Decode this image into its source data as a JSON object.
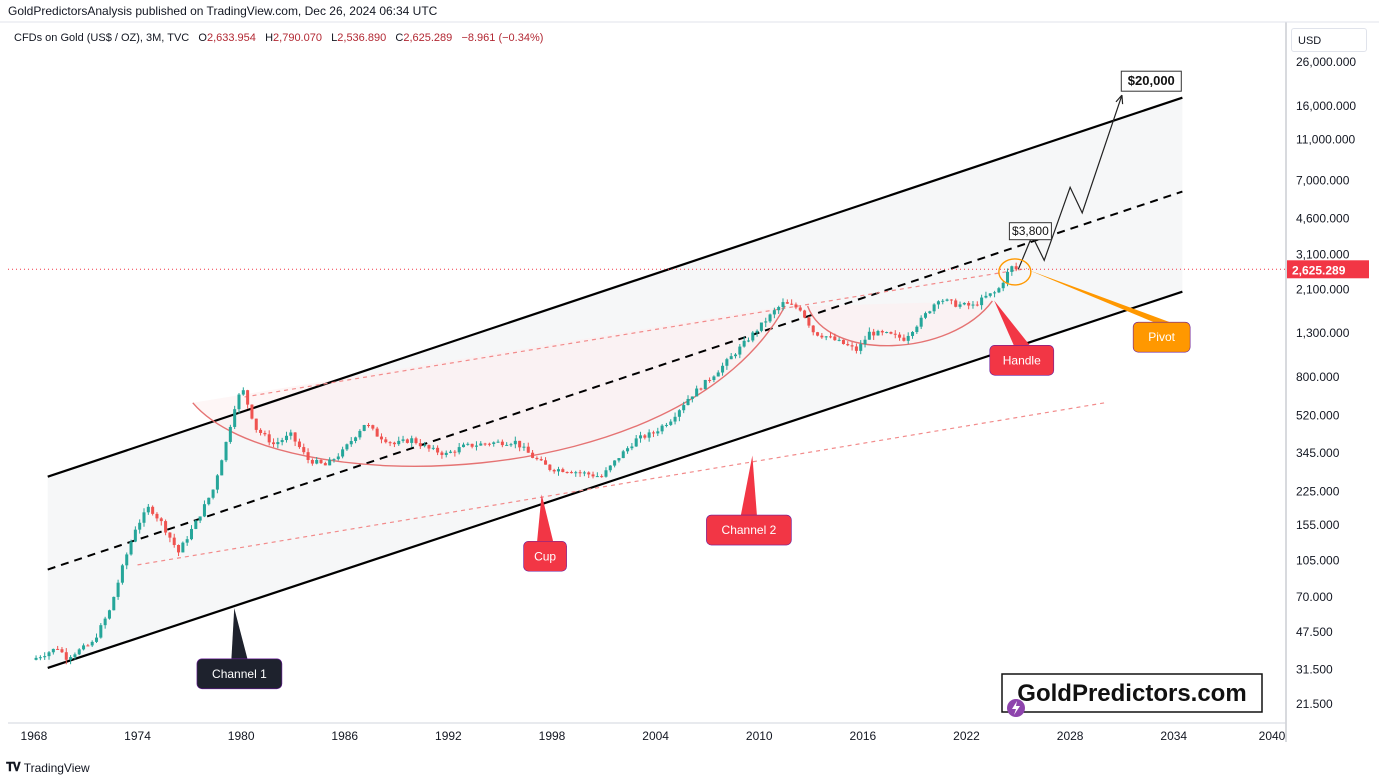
{
  "header": {
    "published": "GoldPredictorsAnalysis published on TradingView.com, Dec 26, 2024 06:34 UTC",
    "symbol": "CFDs on Gold (US$ / OZ), 3M, TVC",
    "o_label": "O",
    "o_value": "2,633.954",
    "h_label": "H",
    "h_value": "2,790.070",
    "l_label": "L",
    "l_value": "2,536.890",
    "c_label": "C",
    "c_value": "2,625.289",
    "change": "−8.961 (−0.34%)"
  },
  "currency": "USD",
  "footer": {
    "brand": "TradingView"
  },
  "watermark": "GoldPredictors.com",
  "colors": {
    "up": "#26a69a",
    "down": "#ef5350",
    "label_red": "#f23645",
    "label_dark": "#1e222d",
    "label_orange": "#ff9800",
    "price_tag": "#f23645"
  },
  "chart_data": {
    "type": "candlestick",
    "scale": "log",
    "x_ticks": [
      "1968",
      "1974",
      "1980",
      "1986",
      "1992",
      "1998",
      "2004",
      "2010",
      "2016",
      "2022",
      "2028",
      "2034",
      "2040"
    ],
    "y_ticks": [
      "26,000.000",
      "16,000.000",
      "11,000.000",
      "7,000.000",
      "4,600.000",
      "3,100.000",
      "2,100.000",
      "1,300.000",
      "800.000",
      "520.000",
      "345.000",
      "225.000",
      "155.000",
      "105.000",
      "70.000",
      "47.500",
      "31.500",
      "21.500"
    ],
    "y_tick_values": [
      26000,
      16000,
      11000,
      7000,
      4600,
      3100,
      2100,
      1300,
      800,
      520,
      345,
      225,
      155,
      105,
      70,
      47.5,
      31.5,
      21.5
    ],
    "last_price_label": "2,625.289",
    "last_price": 2625.289,
    "price_path": [
      [
        1968.0,
        35
      ],
      [
        1969.5,
        40
      ],
      [
        1970.0,
        36
      ],
      [
        1971.5,
        42
      ],
      [
        1972.5,
        60
      ],
      [
        1973.3,
        100
      ],
      [
        1974.0,
        150
      ],
      [
        1974.8,
        190
      ],
      [
        1975.5,
        160
      ],
      [
        1976.5,
        115
      ],
      [
        1977.5,
        160
      ],
      [
        1978.5,
        230
      ],
      [
        1979.3,
        400
      ],
      [
        1979.8,
        600
      ],
      [
        1980.2,
        700
      ],
      [
        1981.0,
        450
      ],
      [
        1982.0,
        380
      ],
      [
        1983.0,
        420
      ],
      [
        1984.0,
        320
      ],
      [
        1985.0,
        300
      ],
      [
        1986.0,
        350
      ],
      [
        1987.3,
        480
      ],
      [
        1988.0,
        420
      ],
      [
        1989.0,
        380
      ],
      [
        1990.0,
        400
      ],
      [
        1991.0,
        360
      ],
      [
        1992.0,
        340
      ],
      [
        1993.0,
        370
      ],
      [
        1994.5,
        385
      ],
      [
        1996.0,
        390
      ],
      [
        1997.0,
        330
      ],
      [
        1998.0,
        290
      ],
      [
        1999.0,
        285
      ],
      [
        2000.0,
        275
      ],
      [
        2001.0,
        265
      ],
      [
        2002.0,
        330
      ],
      [
        2003.0,
        400
      ],
      [
        2004.0,
        430
      ],
      [
        2005.0,
        500
      ],
      [
        2006.0,
        630
      ],
      [
        2007.0,
        750
      ],
      [
        2008.0,
        900
      ],
      [
        2009.0,
        1100
      ],
      [
        2010.0,
        1350
      ],
      [
        2011.0,
        1650
      ],
      [
        2011.5,
        1800
      ],
      [
        2012.5,
        1700
      ],
      [
        2013.3,
        1300
      ],
      [
        2014.0,
        1250
      ],
      [
        2015.0,
        1150
      ],
      [
        2015.8,
        1070
      ],
      [
        2016.5,
        1300
      ],
      [
        2017.5,
        1280
      ],
      [
        2018.5,
        1220
      ],
      [
        2019.5,
        1500
      ],
      [
        2020.5,
        1900
      ],
      [
        2021.5,
        1780
      ],
      [
        2022.5,
        1750
      ],
      [
        2023.3,
        1950
      ],
      [
        2023.9,
        2050
      ],
      [
        2024.3,
        2350
      ],
      [
        2024.7,
        2700
      ],
      [
        2024.95,
        2625.289
      ]
    ],
    "projection_path": [
      [
        2025.0,
        2625
      ],
      [
        2025.8,
        3800
      ],
      [
        2026.5,
        2900
      ],
      [
        2028.0,
        6500
      ],
      [
        2028.7,
        4900
      ],
      [
        2031.0,
        18000
      ]
    ],
    "channel_upper": {
      "x": [
        1968.8,
        2034.5
      ],
      "y": [
        265,
        17500
      ]
    },
    "channel_mid": {
      "x": [
        1968.8,
        2034.5
      ],
      "y": [
        95,
        6200
      ]
    },
    "channel_lower": {
      "x": [
        1968.8,
        2034.5
      ],
      "y": [
        32,
        2050
      ]
    },
    "channel2_upper": {
      "x": [
        1980.2,
        2025.5
      ],
      "y": [
        640,
        2650
      ]
    },
    "channel2_lower": {
      "x": [
        1974.0,
        2030.0
      ],
      "y": [
        100,
        600
      ]
    },
    "last_price_line": true,
    "cup_arc": {
      "start": [
        1977.2,
        600
      ],
      "bottom": [
        1996.5,
        225
      ],
      "end": [
        2011.5,
        1750
      ]
    },
    "handle_arc": {
      "start": [
        2012.8,
        1750
      ],
      "bottom": [
        2017.5,
        1050
      ],
      "end": [
        2023.5,
        1850
      ]
    },
    "annotations": [
      {
        "text": "Channel 1",
        "kind": "label_dark",
        "x": 1979.9,
        "y": 30,
        "pointer": [
          1979.6,
          62
        ]
      },
      {
        "text": "Cup",
        "kind": "label_red",
        "x": 1997.6,
        "y": 110,
        "pointer": [
          1997.4,
          218
        ]
      },
      {
        "text": "Channel 2",
        "kind": "label_red",
        "x": 2009.4,
        "y": 147,
        "pointer": [
          2009.6,
          335
        ]
      },
      {
        "text": "Handle",
        "kind": "label_red",
        "x": 2025.2,
        "y": 960,
        "pointer": [
          2023.6,
          1860
        ]
      },
      {
        "text": "Pivot",
        "kind": "label_orange",
        "x": 2033.3,
        "y": 1240,
        "pointer": [
          2025.6,
          2600
        ]
      },
      {
        "text": "$3,800",
        "kind": "price_box",
        "x": 2025.7,
        "y": 4000
      },
      {
        "text": "$20,000",
        "kind": "price_box_bold",
        "x": 2032.7,
        "y": 21000
      }
    ],
    "pivot_circle": {
      "x": 2024.8,
      "y": 2550
    },
    "x_range": [
      1966.5,
      2040.5
    ],
    "y_range": [
      18,
      29000
    ],
    "grid": false,
    "legend": "none"
  }
}
